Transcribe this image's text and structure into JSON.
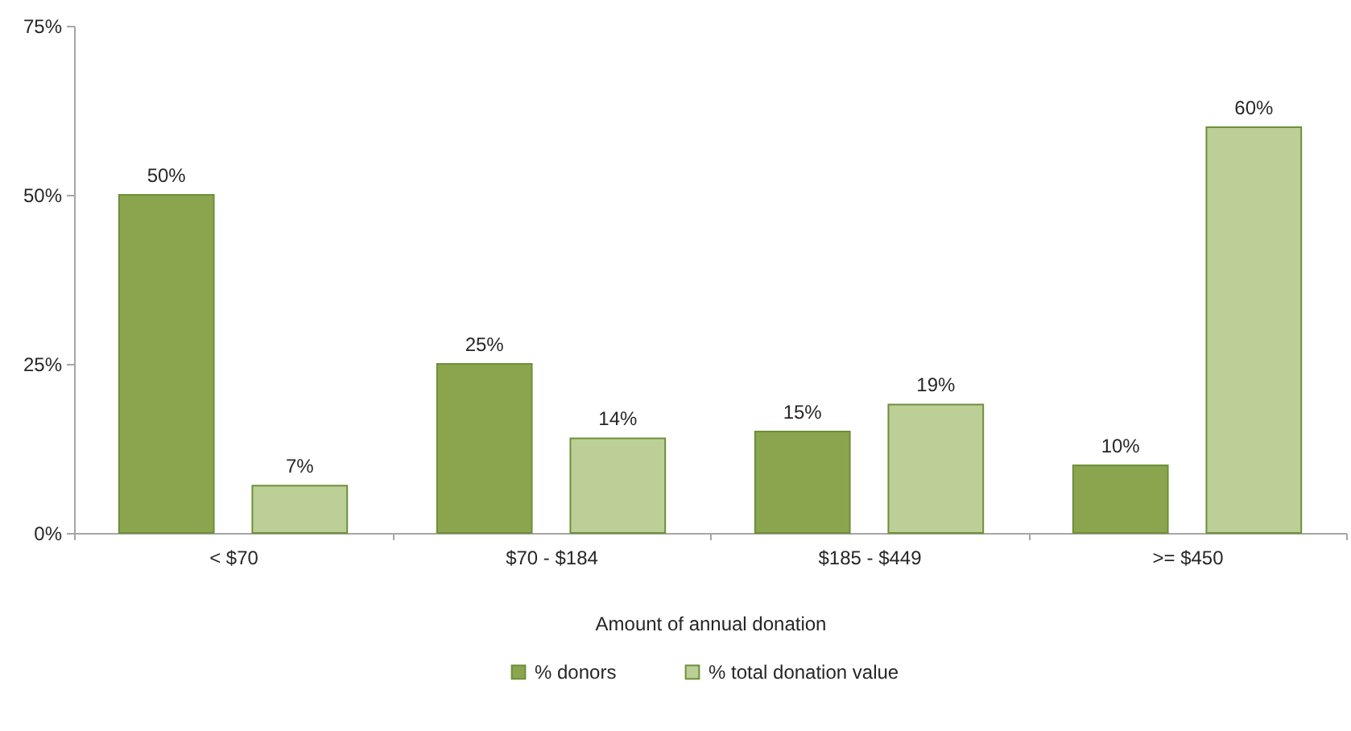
{
  "chart_data": {
    "type": "bar",
    "xlabel": "Amount of annual donation",
    "categories": [
      "< $70",
      "$70 - $184",
      "$185 - $449",
      ">= $450"
    ],
    "series": [
      {
        "name": "% donors",
        "color": "#8aa54e",
        "values": [
          50,
          25,
          15,
          10
        ],
        "value_labels": [
          "50%",
          "25%",
          "15%",
          "10%"
        ]
      },
      {
        "name": "% total donation value",
        "color": "#bbcf97",
        "values": [
          7,
          14,
          19,
          60
        ],
        "value_labels": [
          "7%",
          "14%",
          "19%",
          "60%"
        ]
      }
    ],
    "ylim": [
      0,
      75
    ],
    "yticks": [
      {
        "value": 0,
        "label": "0%"
      },
      {
        "value": 25,
        "label": "25%"
      },
      {
        "value": 50,
        "label": "50%"
      },
      {
        "value": 75,
        "label": "75%"
      }
    ],
    "legend": "bottom"
  }
}
